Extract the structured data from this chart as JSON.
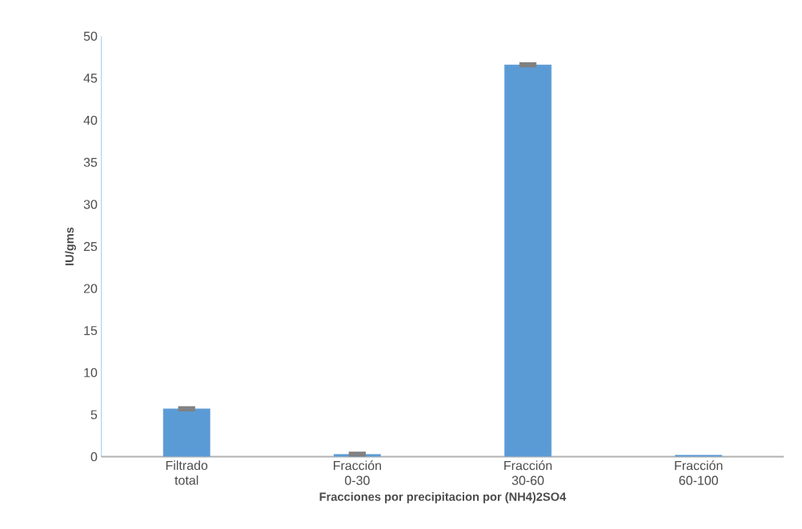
{
  "chart_data": {
    "type": "bar",
    "xlabel": "Fracciones por precipitacion por (NH4)2SO4",
    "ylabel": "IU/gms",
    "categories": [
      "Filtrado total",
      "Fracción 0-30",
      "Fracción 30-60",
      "Fracción 60-100"
    ],
    "values": [
      5.7,
      0.3,
      46.6,
      0.2
    ],
    "errors": [
      0.15,
      0.15,
      0.15,
      null
    ],
    "color": "#5b9bd5",
    "ylim": [
      0,
      50
    ],
    "yticks": [
      0,
      5,
      10,
      15,
      20,
      25,
      30,
      35,
      40,
      45,
      50
    ],
    "grid": false
  }
}
